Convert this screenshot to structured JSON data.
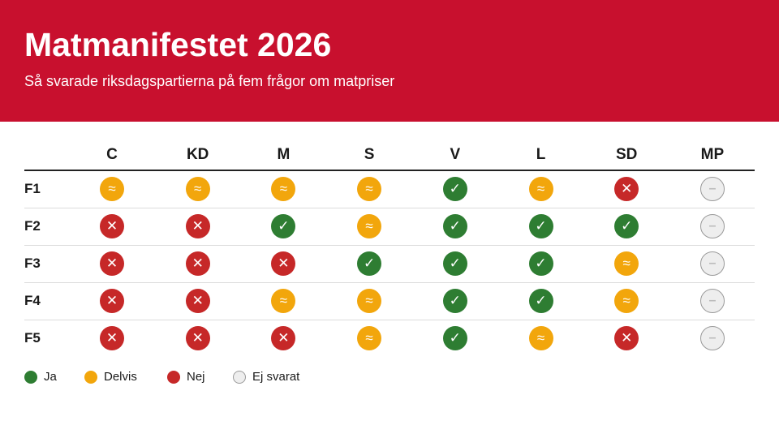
{
  "header": {
    "title": "Matmanifestet 2026",
    "subtitle": "Så svarade riksdagspartierna på fem frågor om matpriser"
  },
  "colors": {
    "header_bg": "#c8102e",
    "yes": "#2e7d32",
    "partial": "#f2a60c",
    "no": "#c62828",
    "na": "#eeeeee"
  },
  "status_styles": {
    "yes": {
      "symbol": "✓",
      "bg": "#2e7d32",
      "fg": "#ffffff",
      "icon": "check-icon"
    },
    "partial": {
      "symbol": "≈",
      "bg": "#f2a60c",
      "fg": "#ffffff",
      "icon": "approx-icon"
    },
    "no": {
      "symbol": "✕",
      "bg": "#c62828",
      "fg": "#ffffff",
      "icon": "cross-icon"
    },
    "na": {
      "symbol": "–",
      "bg": "#eeeeee",
      "fg": "#bbbbbb",
      "icon": "dash-icon"
    }
  },
  "chart_data": {
    "type": "table",
    "columns": [
      "C",
      "KD",
      "M",
      "S",
      "V",
      "L",
      "SD",
      "MP"
    ],
    "rows": [
      {
        "label": "F1",
        "values": [
          "partial",
          "partial",
          "partial",
          "partial",
          "yes",
          "partial",
          "no",
          "na"
        ]
      },
      {
        "label": "F2",
        "values": [
          "no",
          "no",
          "yes",
          "partial",
          "yes",
          "yes",
          "yes",
          "na"
        ]
      },
      {
        "label": "F3",
        "values": [
          "no",
          "no",
          "no",
          "yes",
          "yes",
          "yes",
          "partial",
          "na"
        ]
      },
      {
        "label": "F4",
        "values": [
          "no",
          "no",
          "partial",
          "partial",
          "yes",
          "yes",
          "partial",
          "na"
        ]
      },
      {
        "label": "F5",
        "values": [
          "no",
          "no",
          "no",
          "partial",
          "yes",
          "partial",
          "no",
          "na"
        ]
      }
    ],
    "legend": [
      {
        "key": "yes",
        "label": "Ja"
      },
      {
        "key": "partial",
        "label": "Delvis"
      },
      {
        "key": "no",
        "label": "Nej"
      },
      {
        "key": "na",
        "label": "Ej svarat"
      }
    ]
  }
}
